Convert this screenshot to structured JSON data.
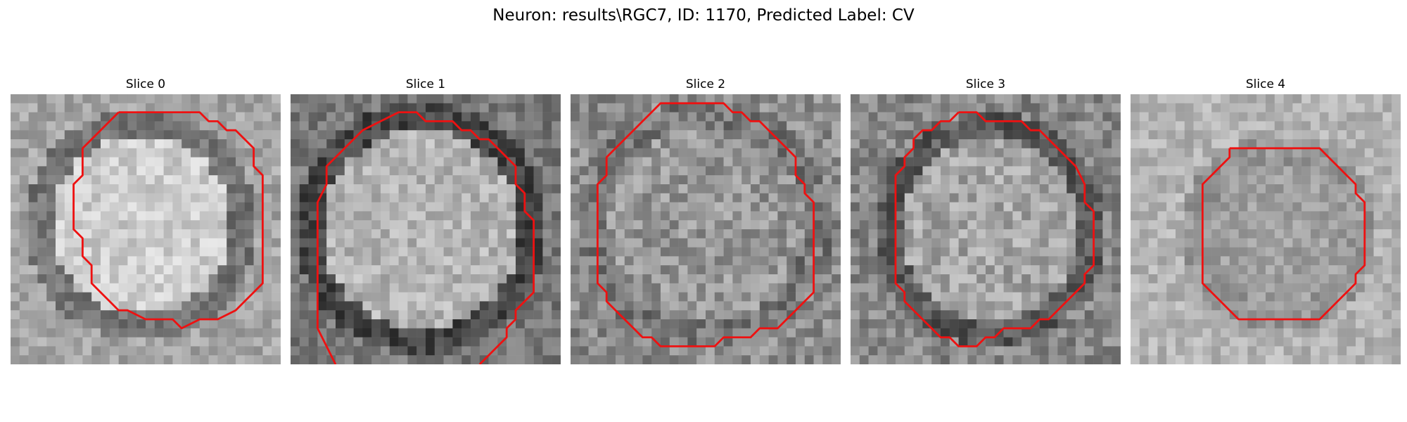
{
  "figure": {
    "title": "Neuron: results\\RGC7, ID: 1170, Predicted Label: CV"
  },
  "panels": [
    {
      "title": "Slice 0"
    },
    {
      "title": "Slice 1"
    },
    {
      "title": "Slice 2"
    },
    {
      "title": "Slice 3"
    },
    {
      "title": "Slice 4"
    }
  ],
  "style": {
    "contour_color": "#ee1111",
    "colormap": "gray"
  }
}
